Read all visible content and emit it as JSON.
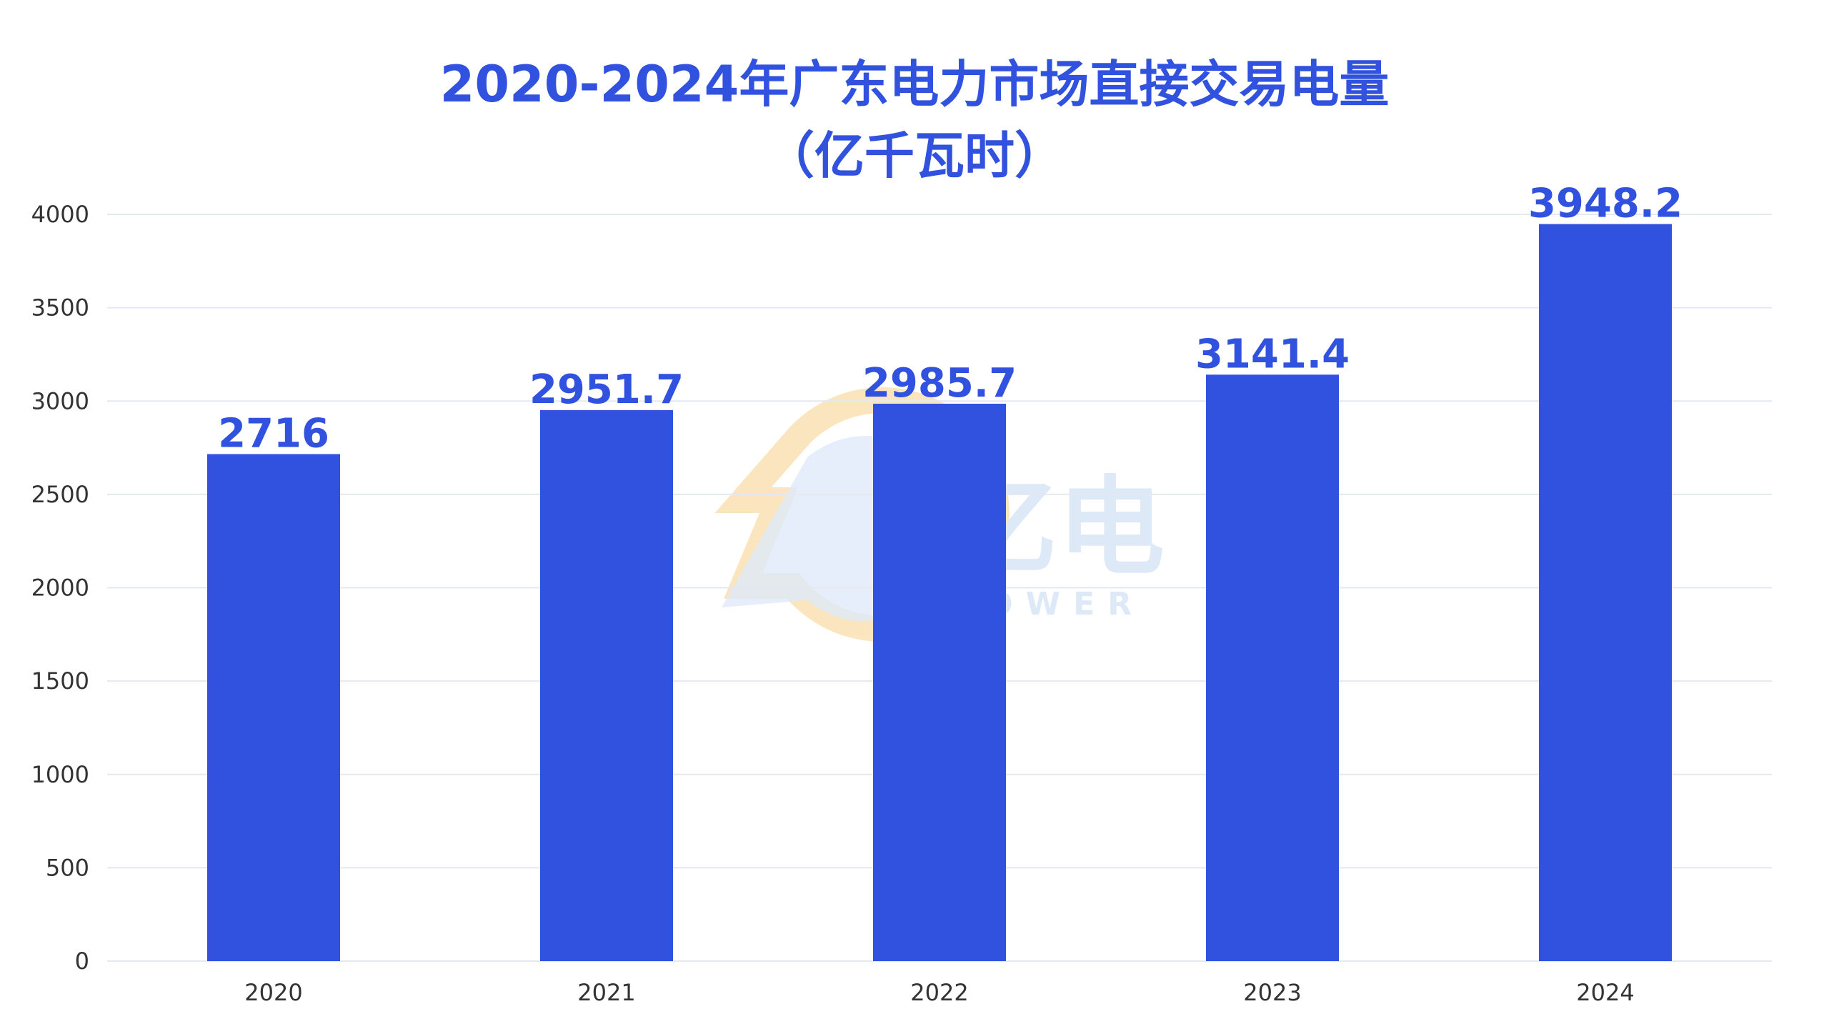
{
  "chart_data": {
    "type": "bar",
    "title": "2020-2024年广东电力市场直接交易电量",
    "subtitle": "（亿千瓦时）",
    "categories": [
      "2020",
      "2021",
      "2022",
      "2023",
      "2024"
    ],
    "values": [
      2716,
      2951.7,
      2985.7,
      3141.4,
      3948.2
    ],
    "value_labels": [
      "2716",
      "2951.7",
      "2985.7",
      "3141.4",
      "3948.2"
    ],
    "y_ticks": [
      0,
      500,
      1000,
      1500,
      2000,
      2500,
      3000,
      3500,
      4000
    ],
    "ylim": [
      0,
      4000
    ],
    "grid": true,
    "bar_color": "#3152df",
    "grid_color": "#e6e8f0"
  },
  "watermark": {
    "text": "亿电",
    "subtext": "POWER",
    "colors": [
      "#fbe3b8",
      "#dbe7f7"
    ]
  }
}
